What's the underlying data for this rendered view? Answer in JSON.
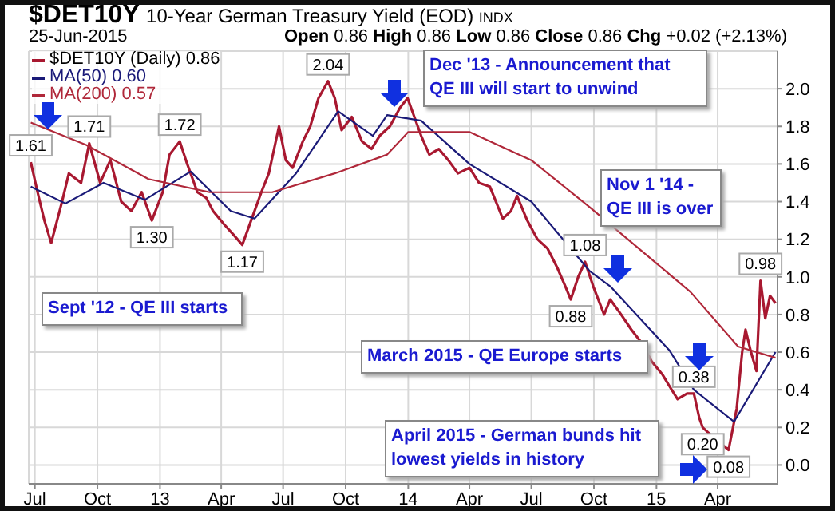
{
  "chart_data": {
    "type": "line",
    "title": "$DET10Y 10-Year German Treasury Yield (EOD) INDX",
    "subtitle": "25-Jun-2015",
    "annotations": [
      "Open 0.86 High 0.86 Low 0.86 Close 0.86 Chg +0.02 (+2.13%)",
      "Dec '13 - Announcement that\nQE III will start to unwind",
      "Nov 1 '14 -\nQE III is over",
      "Sept '12 - QE III starts",
      "March 2015 - QE Europe starts",
      "April 2015 - German bunds hit\nlowest yields in history",
      {
        "text": "1.61",
        "x": "2012-06-25",
        "y": 1.61
      },
      {
        "text": "1.71",
        "x": "2012-09-19",
        "y": 1.71
      },
      {
        "text": "1.30",
        "x": "2012-12-20",
        "y": 1.3
      },
      {
        "text": "1.72",
        "x": "2013-01-30",
        "y": 1.72
      },
      {
        "text": "1.17",
        "x": "2013-05-02",
        "y": 1.17
      },
      {
        "text": "2.04",
        "x": "2013-09-05",
        "y": 2.04
      },
      {
        "text": "0.88",
        "x": "2014-08-28",
        "y": 0.88
      },
      {
        "text": "1.08",
        "x": "2014-09-18",
        "y": 1.08
      },
      {
        "text": "0.38",
        "x": "2015-02-25",
        "y": 0.38
      },
      {
        "text": "0.20",
        "x": "2015-03-10",
        "y": 0.2
      },
      {
        "text": "0.08",
        "x": "2015-04-17",
        "y": 0.08
      },
      {
        "text": "0.98",
        "x": "2015-06-03",
        "y": 0.98
      }
    ],
    "series": [
      {
        "name": "$DET10Y (Daily) 0.86",
        "color": "#a81830",
        "x": [
          "2012-06-25",
          "2012-07-05",
          "2012-07-15",
          "2012-07-25",
          "2012-08-10",
          "2012-08-20",
          "2012-09-07",
          "2012-09-19",
          "2012-10-05",
          "2012-10-20",
          "2012-11-05",
          "2012-11-20",
          "2012-12-05",
          "2012-12-20",
          "2013-01-05",
          "2013-01-15",
          "2013-01-30",
          "2013-02-10",
          "2013-02-25",
          "2013-03-10",
          "2013-03-20",
          "2013-04-05",
          "2013-04-20",
          "2013-05-02",
          "2013-05-15",
          "2013-05-30",
          "2013-06-10",
          "2013-06-25",
          "2013-07-05",
          "2013-07-15",
          "2013-07-30",
          "2013-08-10",
          "2013-08-22",
          "2013-09-05",
          "2013-09-15",
          "2013-09-25",
          "2013-10-10",
          "2013-10-25",
          "2013-11-08",
          "2013-11-20",
          "2013-12-05",
          "2013-12-20",
          "2013-12-31",
          "2014-01-10",
          "2014-01-20",
          "2014-02-01",
          "2014-02-15",
          "2014-03-01",
          "2014-03-15",
          "2014-04-01",
          "2014-04-15",
          "2014-05-01",
          "2014-05-20",
          "2014-06-01",
          "2014-06-10",
          "2014-06-25",
          "2014-07-10",
          "2014-07-25",
          "2014-08-08",
          "2014-08-20",
          "2014-08-28",
          "2014-09-08",
          "2014-09-18",
          "2014-09-30",
          "2014-10-16",
          "2014-10-25",
          "2014-11-10",
          "2014-11-25",
          "2014-12-10",
          "2014-12-25",
          "2015-01-10",
          "2015-01-20",
          "2015-02-01",
          "2015-02-15",
          "2015-02-25",
          "2015-03-05",
          "2015-03-10",
          "2015-03-25",
          "2015-04-17",
          "2015-04-29",
          "2015-05-07",
          "2015-05-12",
          "2015-05-20",
          "2015-05-28",
          "2015-06-03",
          "2015-06-10",
          "2015-06-17",
          "2015-06-25"
        ],
        "values": [
          1.61,
          1.45,
          1.3,
          1.18,
          1.4,
          1.55,
          1.5,
          1.71,
          1.5,
          1.62,
          1.4,
          1.35,
          1.45,
          1.3,
          1.45,
          1.65,
          1.72,
          1.6,
          1.45,
          1.42,
          1.35,
          1.28,
          1.22,
          1.17,
          1.3,
          1.45,
          1.55,
          1.8,
          1.62,
          1.58,
          1.72,
          1.8,
          1.95,
          2.04,
          1.95,
          1.78,
          1.85,
          1.72,
          1.68,
          1.75,
          1.8,
          1.9,
          1.95,
          1.85,
          1.75,
          1.65,
          1.68,
          1.62,
          1.55,
          1.58,
          1.5,
          1.48,
          1.31,
          1.35,
          1.43,
          1.3,
          1.2,
          1.15,
          1.05,
          0.95,
          0.88,
          1.0,
          1.08,
          0.95,
          0.8,
          0.88,
          0.8,
          0.72,
          0.65,
          0.55,
          0.48,
          0.42,
          0.35,
          0.38,
          0.38,
          0.25,
          0.2,
          0.15,
          0.08,
          0.3,
          0.6,
          0.72,
          0.6,
          0.5,
          0.98,
          0.78,
          0.9,
          0.86
        ]
      },
      {
        "name": "MA(50) 0.60",
        "color": "#1a1a78",
        "x": [
          "2012-06-25",
          "2012-08-15",
          "2012-10-10",
          "2012-12-10",
          "2013-02-15",
          "2013-04-15",
          "2013-05-20",
          "2013-07-20",
          "2013-09-20",
          "2013-11-10",
          "2013-12-01",
          "2014-01-20",
          "2014-04-01",
          "2014-07-01",
          "2014-09-25",
          "2014-10-25",
          "2015-01-20",
          "2015-02-25",
          "2015-04-25",
          "2015-06-25"
        ],
        "values": [
          1.48,
          1.39,
          1.5,
          1.41,
          1.56,
          1.35,
          1.31,
          1.55,
          1.88,
          1.75,
          1.86,
          1.83,
          1.6,
          1.4,
          1.03,
          0.95,
          0.61,
          0.4,
          0.23,
          0.6
        ]
      },
      {
        "name": "MA(200) 0.57",
        "color": "#b0283a",
        "x": [
          "2012-06-25",
          "2012-09-15",
          "2012-12-15",
          "2013-03-15",
          "2013-06-15",
          "2013-09-15",
          "2013-12-01",
          "2014-01-01",
          "2014-04-01",
          "2014-07-01",
          "2014-09-25",
          "2014-11-10",
          "2015-02-20",
          "2015-05-01",
          "2015-06-25"
        ],
        "values": [
          1.82,
          1.7,
          1.52,
          1.45,
          1.45,
          1.55,
          1.65,
          1.77,
          1.77,
          1.62,
          1.37,
          1.23,
          0.92,
          0.63,
          0.57
        ]
      }
    ],
    "xlim": [
      "2012-06-22",
      "2015-06-28"
    ],
    "xticks": [
      {
        "value": "2012-07-01",
        "label": "Jul"
      },
      {
        "value": "2012-10-01",
        "label": "Oct"
      },
      {
        "value": "2013-01-01",
        "label": "13"
      },
      {
        "value": "2013-04-01",
        "label": "Apr"
      },
      {
        "value": "2013-07-01",
        "label": "Jul"
      },
      {
        "value": "2013-10-01",
        "label": "Oct"
      },
      {
        "value": "2014-01-01",
        "label": "14"
      },
      {
        "value": "2014-04-01",
        "label": "Apr"
      },
      {
        "value": "2014-07-01",
        "label": "Jul"
      },
      {
        "value": "2014-10-01",
        "label": "Oct"
      },
      {
        "value": "2015-01-01",
        "label": "15"
      },
      {
        "value": "2015-04-01",
        "label": "Apr"
      }
    ],
    "ylim": [
      -0.1,
      2.2
    ],
    "yticks": [
      {
        "value": 0,
        "label": "0.0"
      },
      {
        "value": 0.2,
        "label": "0.2"
      },
      {
        "value": 0.4,
        "label": "0.4"
      },
      {
        "value": 0.6,
        "label": "0.6"
      },
      {
        "value": 0.8,
        "label": "0.8"
      },
      {
        "value": 1,
        "label": "1.0"
      },
      {
        "value": 1.2,
        "label": "1.2"
      },
      {
        "value": 1.4,
        "label": "1.4"
      },
      {
        "value": 1.6,
        "label": "1.6"
      },
      {
        "value": 1.8,
        "label": "1.8"
      },
      {
        "value": 2,
        "label": "2.0"
      }
    ],
    "grid": true,
    "legend": "top left",
    "marker": "none",
    "line_style": "solid"
  }
}
